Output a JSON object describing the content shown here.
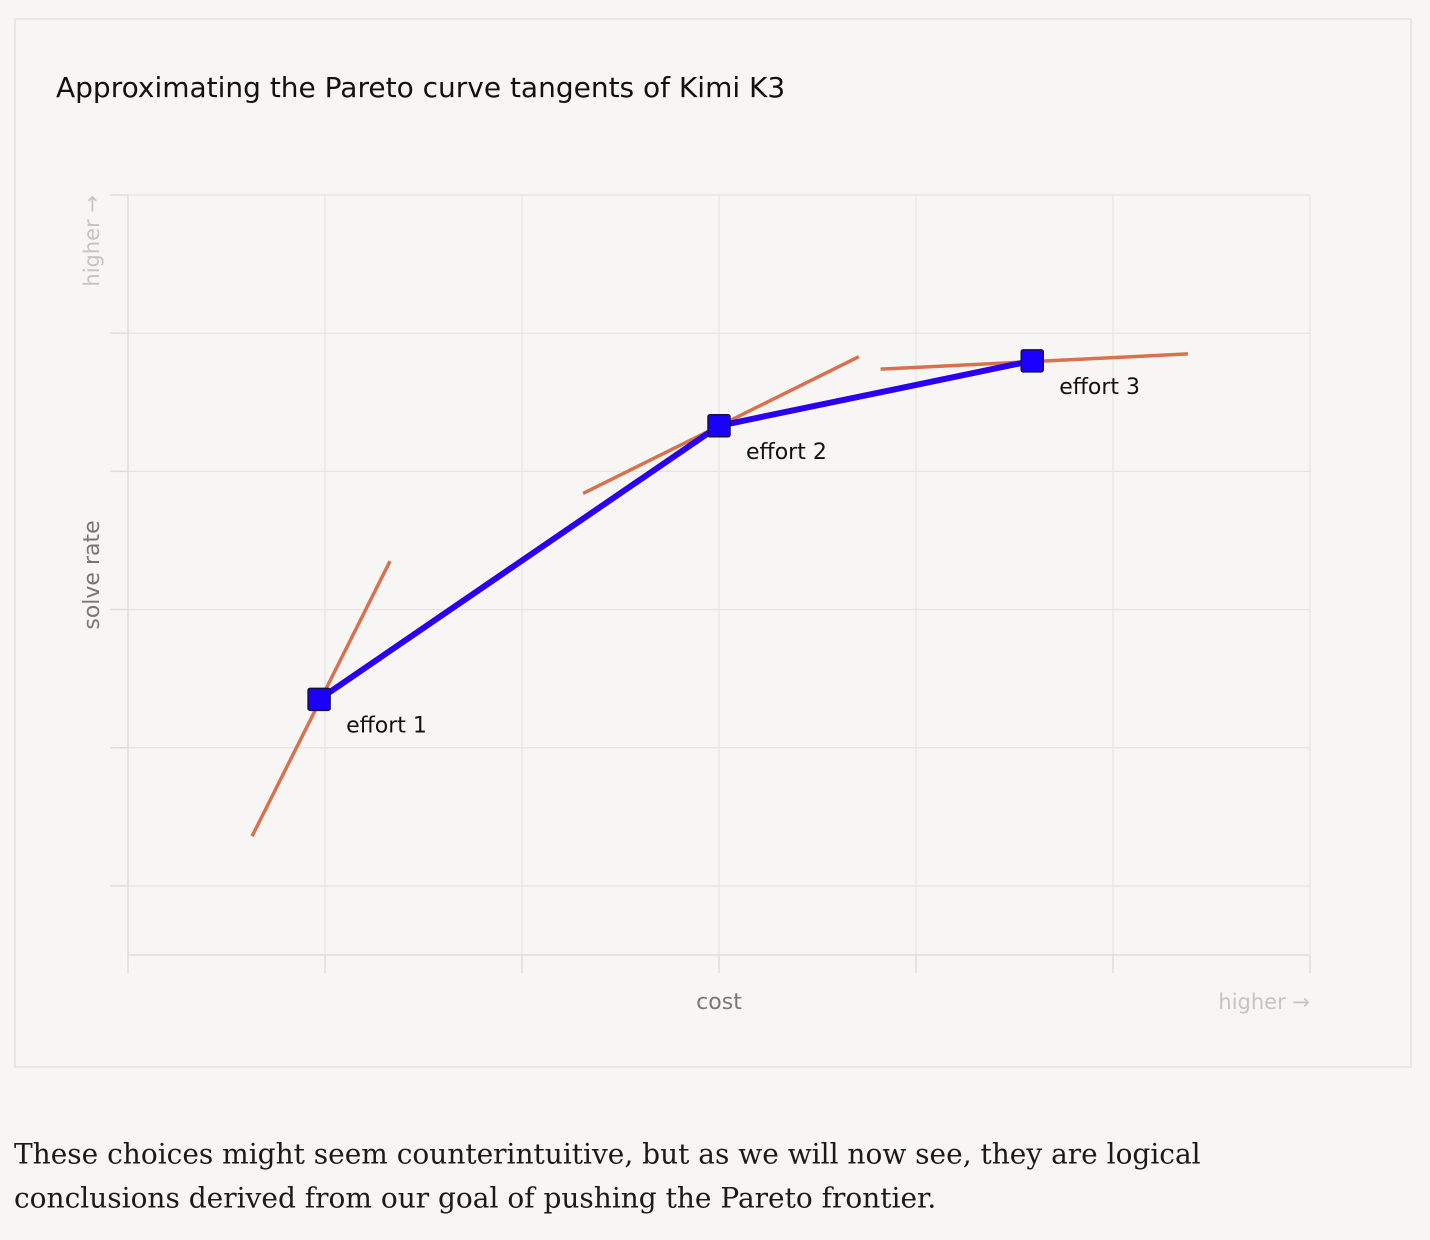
{
  "chart_data": {
    "type": "line",
    "title": "Approximating the Pareto curve tangents of Kimi K3",
    "x_label": "cost",
    "x_direction": "higher →",
    "y_label": "solve rate",
    "y_direction": "higher →",
    "xlim": [
      0,
      6
    ],
    "xticks": [
      0,
      1,
      2,
      3,
      4,
      5,
      6
    ],
    "ylim": [
      -0.5,
      5
    ],
    "yticks": [
      0,
      1,
      2,
      3,
      4,
      5
    ],
    "grid": true,
    "series": [
      {
        "color": "#2a00f2",
        "x": [
          0.97,
          3.0,
          4.59
        ],
        "values": [
          1.35,
          3.33,
          3.8
        ],
        "labels": [
          "effort 1",
          "effort 2",
          "effort 3"
        ],
        "marker_color": "#1a00ff"
      }
    ],
    "tangent_color": "#d8714f",
    "tangents": [
      {
        "x": [
          0.63,
          1.33
        ],
        "values": [
          0.36,
          2.35
        ]
      },
      {
        "x": [
          2.31,
          3.71
        ],
        "values": [
          2.84,
          3.83
        ]
      },
      {
        "x": [
          3.82,
          5.38
        ],
        "values": [
          3.74,
          3.85
        ]
      }
    ]
  },
  "paragraph": {
    "lines": [
      "These choices might seem counterintuitive, but as we will now see, they are logical",
      "conclusions derived from our goal of pushing the Pareto frontier."
    ]
  }
}
